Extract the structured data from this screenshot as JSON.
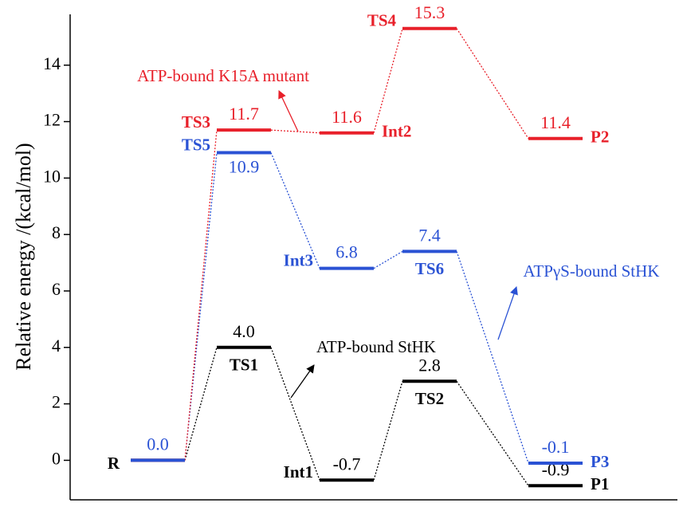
{
  "chart_data": {
    "type": "energy-profile",
    "y_label": "Relative energy /(kcal/mol)",
    "ylim": [
      -1.4,
      15.8
    ],
    "yticks": [
      0,
      2,
      4,
      6,
      8,
      10,
      12,
      14
    ],
    "series": [
      {
        "name": "ATP-bound StHK",
        "color": "#000000",
        "values": [
          0,
          4.0,
          -0.7,
          2.8,
          -0.9
        ],
        "value_labels": [
          null,
          "4.0",
          "-0.7",
          "2.8",
          "-0.9"
        ],
        "labels": [
          "R",
          "TS1",
          "Int1",
          "TS2",
          "P1"
        ]
      },
      {
        "name": "ATPγS-bound StHK",
        "color": "#2a52d4",
        "values": [
          0,
          10.9,
          6.8,
          7.4,
          -0.1
        ],
        "value_labels": [
          "0.0",
          "10.9",
          "6.8",
          "7.4",
          "-0.1"
        ],
        "labels": [
          null,
          "TS5",
          "Int3",
          "TS6",
          "P3"
        ]
      },
      {
        "name": "ATP-bound K15A mutant",
        "color": "#e8202a",
        "values": [
          0,
          11.7,
          11.6,
          15.3,
          11.4
        ],
        "value_labels": [
          null,
          "11.7",
          "11.6",
          "15.3",
          "11.4"
        ],
        "labels": [
          null,
          "TS3",
          "Int2",
          "TS4",
          "P2"
        ]
      }
    ]
  }
}
